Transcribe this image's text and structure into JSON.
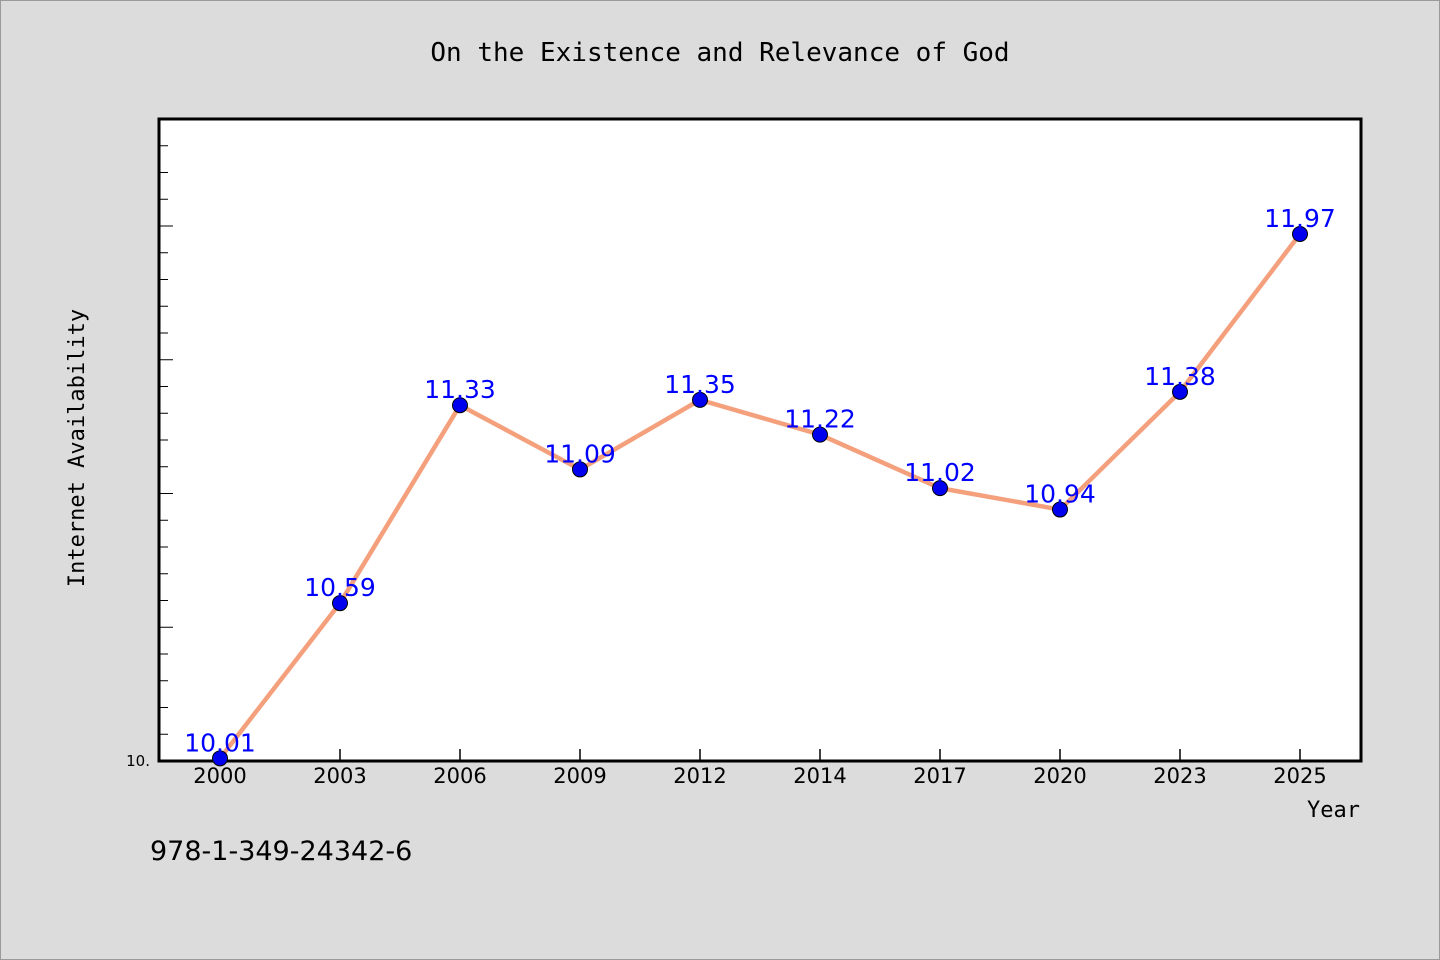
{
  "chart_data": {
    "type": "line",
    "title": "On the Existence and Relevance of God",
    "xlabel": "Year",
    "ylabel": "Internet Availability",
    "categories": [
      "2000",
      "2003",
      "2006",
      "2009",
      "2012",
      "2014",
      "2017",
      "2020",
      "2023",
      "2025"
    ],
    "series": [
      {
        "values": [
          10.01,
          10.59,
          11.33,
          11.09,
          11.35,
          11.22,
          11.02,
          10.94,
          11.38,
          11.97
        ]
      }
    ],
    "data_labels": [
      "10.01",
      "10.59",
      "11.33",
      "11.09",
      "11.35",
      "11.22",
      "11.02",
      "10.94",
      "11.38",
      "11.97"
    ],
    "ylim": [
      10.0,
      12.4
    ],
    "ytick_label": "10.",
    "grid": false,
    "line_color": "#f4a07c",
    "marker_color": "#0000ee",
    "label_color": "#0000ff"
  },
  "footer": {
    "code": "978-1-349-24342-6"
  }
}
